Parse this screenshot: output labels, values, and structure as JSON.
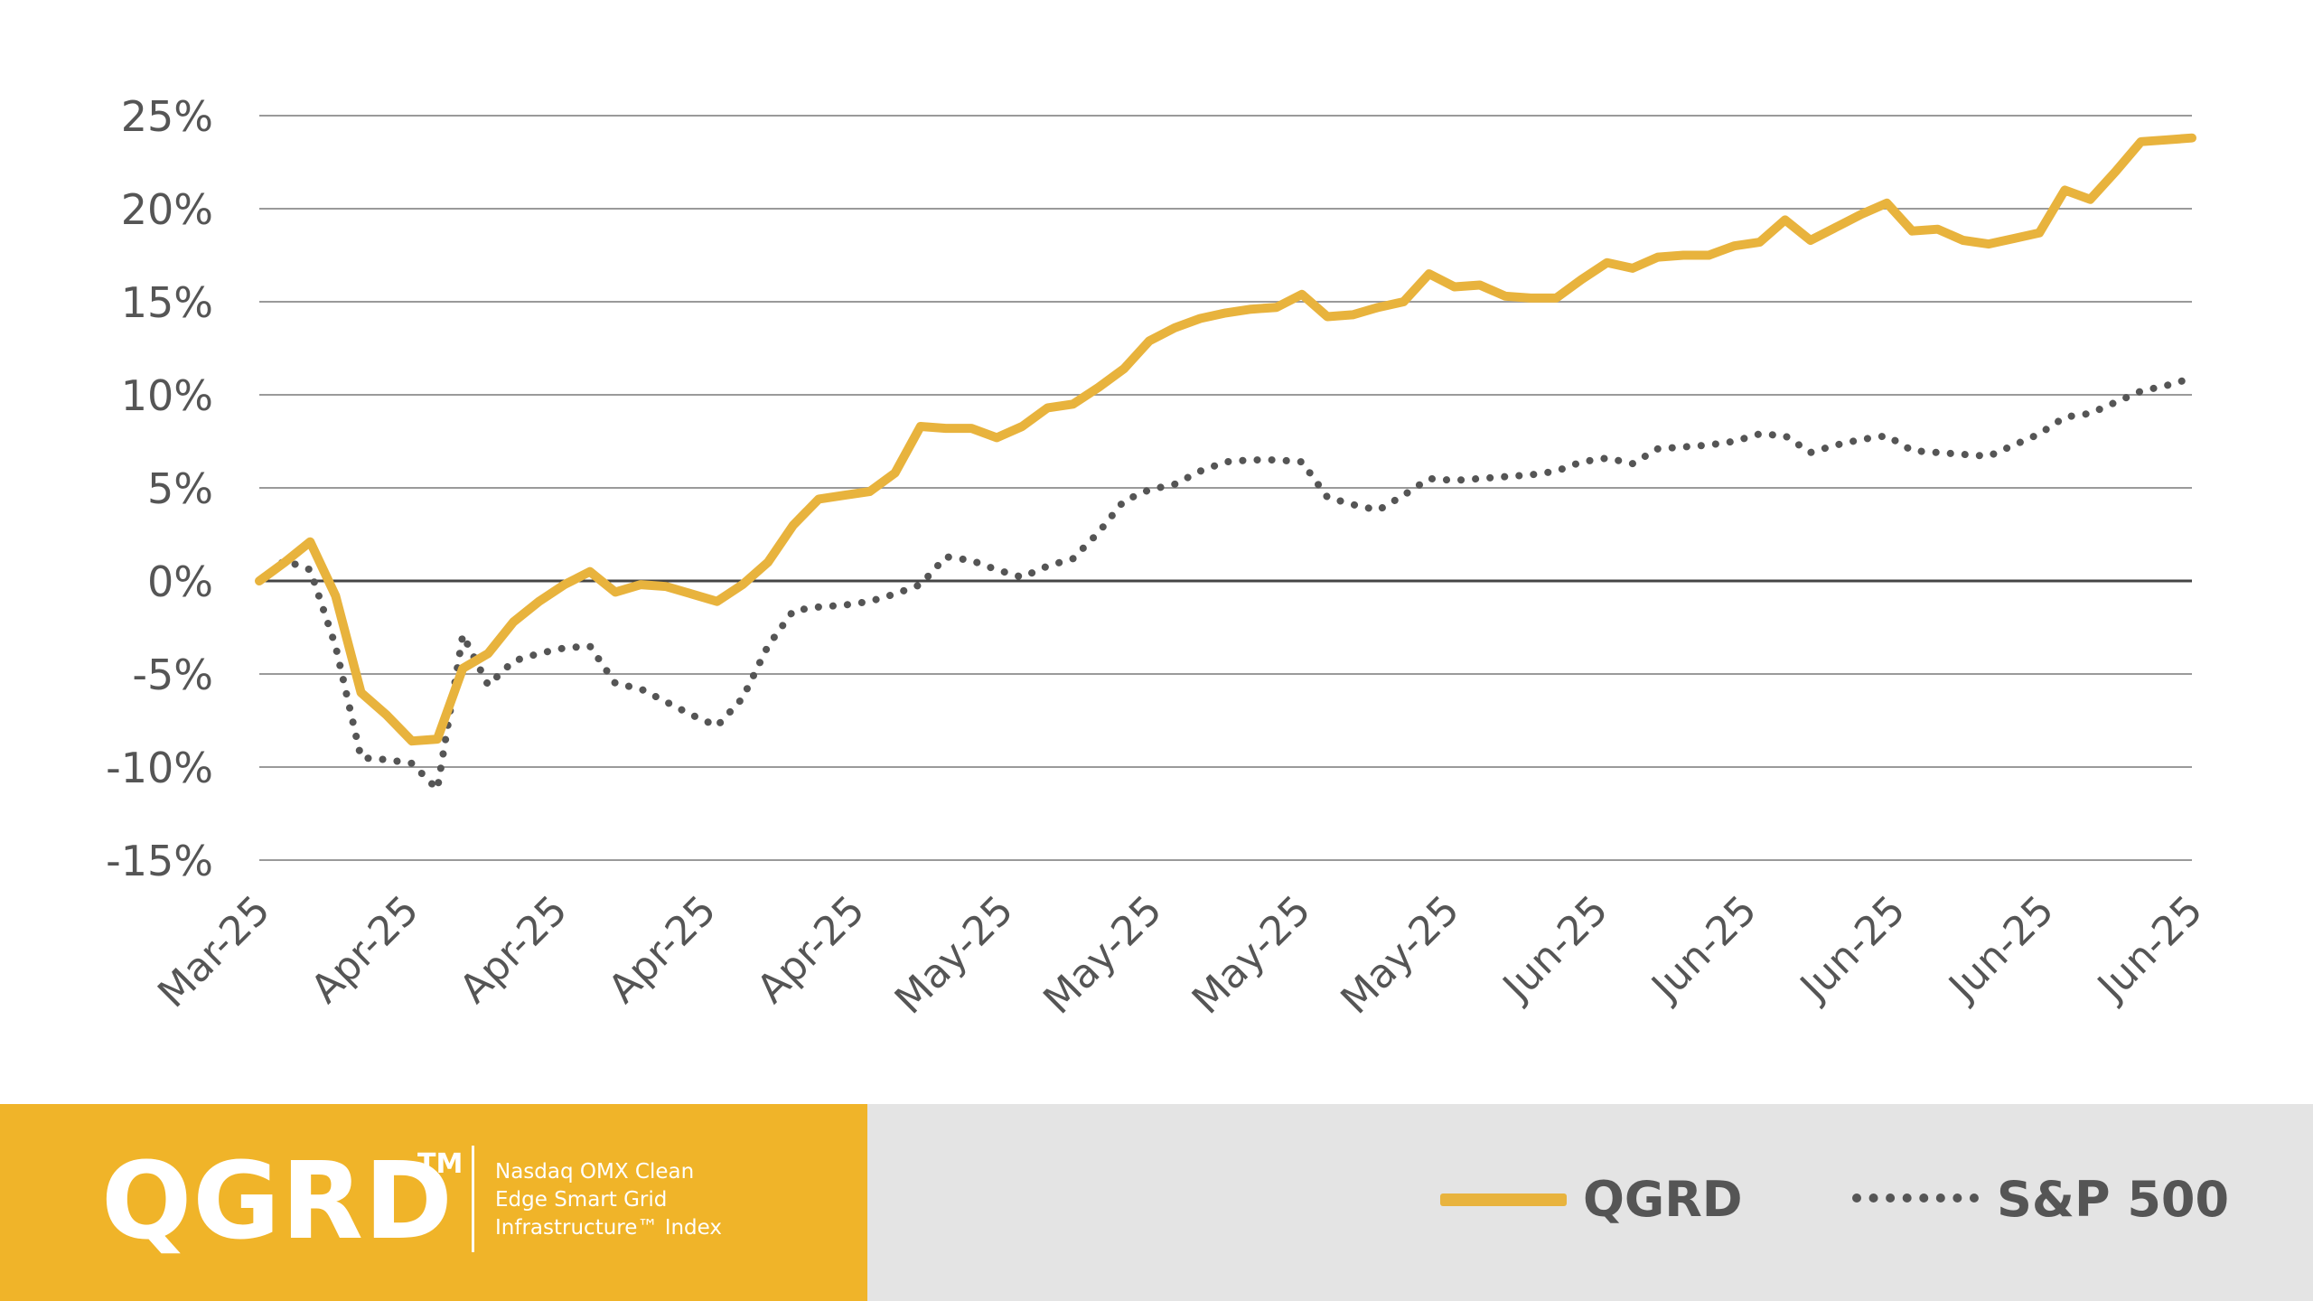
{
  "chart_data": {
    "type": "line",
    "title": "",
    "xlabel": "",
    "ylabel": "",
    "ylim": [
      -15,
      25
    ],
    "y_ticks": [
      "25%",
      "20%",
      "15%",
      "10%",
      "5%",
      "0%",
      "-5%",
      "-10%",
      "-15%"
    ],
    "y_tick_values": [
      25,
      20,
      15,
      10,
      5,
      0,
      -5,
      -10,
      -15
    ],
    "x_tick_labels": [
      "Mar-25",
      "Apr-25",
      "Apr-25",
      "Apr-25",
      "Apr-25",
      "May-25",
      "May-25",
      "May-25",
      "May-25",
      "Jun-25",
      "Jun-25",
      "Jun-25",
      "Jun-25",
      "Jun-25"
    ],
    "grid": true,
    "series": [
      {
        "name": "QGRD",
        "color": "#e8b33d",
        "style": "solid",
        "values": [
          0.0,
          1.0,
          2.1,
          -0.8,
          -6.0,
          -7.2,
          -8.6,
          -8.5,
          -4.7,
          -3.9,
          -2.2,
          -1.1,
          -0.2,
          0.5,
          -0.6,
          -0.2,
          -0.3,
          -0.7,
          -1.1,
          -0.2,
          1.0,
          3.0,
          4.4,
          4.6,
          4.8,
          5.8,
          8.3,
          8.2,
          8.2,
          7.7,
          8.3,
          9.3,
          9.5,
          10.4,
          11.4,
          12.9,
          13.6,
          14.1,
          14.4,
          14.6,
          14.7,
          15.4,
          14.2,
          14.3,
          14.7,
          15.0,
          16.5,
          15.8,
          15.9,
          15.3,
          15.2,
          15.2,
          16.2,
          17.1,
          16.8,
          17.4,
          17.5,
          17.5,
          18.0,
          18.2,
          19.4,
          18.3,
          19.0,
          19.7,
          20.3,
          18.8,
          18.9,
          18.3,
          18.1,
          18.4,
          18.7,
          21.0,
          20.5,
          22.0,
          23.6,
          23.7,
          23.8
        ]
      },
      {
        "name": "S&P 500",
        "color": "#555555",
        "style": "dotted",
        "values": [
          0.0,
          1.1,
          0.6,
          -3.5,
          -9.5,
          -9.6,
          -9.8,
          -11.2,
          -2.9,
          -5.6,
          -4.3,
          -3.9,
          -3.6,
          -3.5,
          -5.5,
          -5.8,
          -6.5,
          -7.2,
          -7.8,
          -6.3,
          -3.5,
          -1.6,
          -1.4,
          -1.3,
          -1.1,
          -0.7,
          -0.2,
          1.3,
          1.1,
          0.6,
          0.2,
          0.8,
          1.2,
          2.6,
          4.3,
          4.9,
          5.2,
          5.9,
          6.4,
          6.5,
          6.5,
          6.4,
          4.5,
          4.1,
          3.8,
          4.6,
          5.5,
          5.4,
          5.5,
          5.6,
          5.7,
          5.9,
          6.4,
          6.6,
          6.3,
          7.1,
          7.2,
          7.3,
          7.5,
          7.9,
          7.8,
          6.9,
          7.3,
          7.6,
          7.8,
          7.0,
          6.9,
          6.8,
          6.7,
          7.3,
          7.9,
          8.8,
          9.0,
          9.6,
          10.2,
          10.5,
          10.9
        ]
      }
    ]
  },
  "footer": {
    "brand": "QGRD",
    "trademark": "TM",
    "description_lines": [
      "Nasdaq OMX Clean",
      "Edge Smart Grid",
      "Infrastructure™ Index"
    ],
    "legend": [
      {
        "label": "QGRD"
      },
      {
        "label": "S&P 500"
      }
    ]
  },
  "colors": {
    "accent": "#f0b429",
    "line_qgrd": "#e8b33d",
    "line_sp500": "#555555",
    "panel_grey": "#e4e4e4"
  }
}
